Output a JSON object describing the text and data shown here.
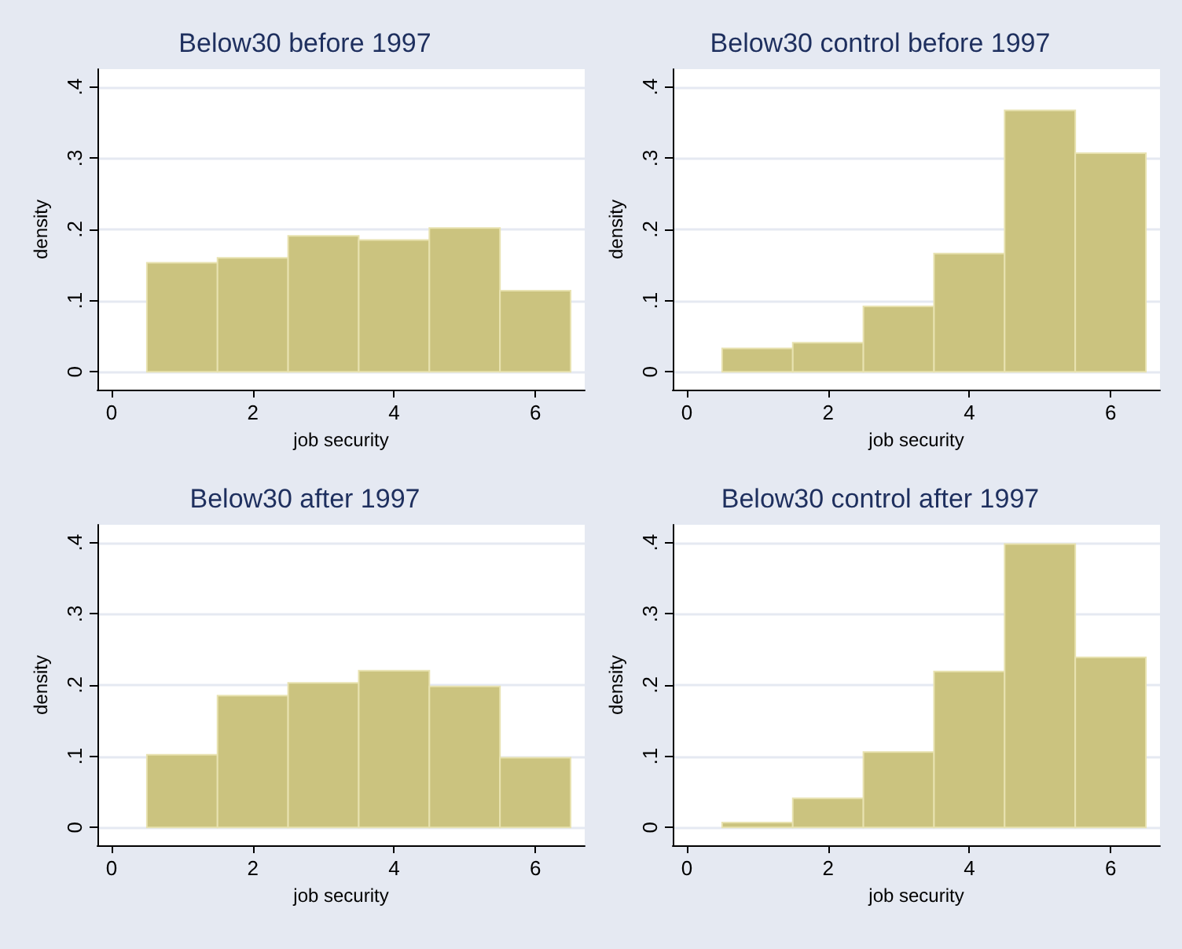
{
  "chart_data": [
    {
      "type": "histogram",
      "title": "Below30 before 1997",
      "xlabel": "job security",
      "ylabel": "density",
      "bins": [
        0.5,
        1.5,
        2.5,
        3.5,
        4.5,
        5.5,
        6.5
      ],
      "values": [
        0.153,
        0.16,
        0.191,
        0.185,
        0.202,
        0.114
      ],
      "color": "#cbc37f",
      "xlim": [
        -0.2,
        6.7
      ],
      "xticks": [
        0,
        2,
        4,
        6
      ],
      "ylim": [
        -0.025,
        0.425
      ],
      "yticks": [
        {
          "value": 0,
          "label": "0"
        },
        {
          "value": 0.1,
          "label": ".1"
        },
        {
          "value": 0.2,
          "label": ".2"
        },
        {
          "value": 0.3,
          "label": ".3"
        },
        {
          "value": 0.4,
          "label": ".4"
        }
      ],
      "grid": "y"
    },
    {
      "type": "histogram",
      "title": "Below30 control before 1997",
      "xlabel": "job security",
      "ylabel": "density",
      "bins": [
        0.5,
        1.5,
        2.5,
        3.5,
        4.5,
        5.5,
        6.5
      ],
      "values": [
        0.033,
        0.041,
        0.092,
        0.166,
        0.367,
        0.307
      ],
      "color": "#cbc37f",
      "xlim": [
        -0.2,
        6.7
      ],
      "xticks": [
        0,
        2,
        4,
        6
      ],
      "ylim": [
        -0.025,
        0.425
      ],
      "yticks": [
        {
          "value": 0,
          "label": "0"
        },
        {
          "value": 0.1,
          "label": ".1"
        },
        {
          "value": 0.2,
          "label": ".2"
        },
        {
          "value": 0.3,
          "label": ".3"
        },
        {
          "value": 0.4,
          "label": ".4"
        }
      ],
      "grid": "y"
    },
    {
      "type": "histogram",
      "title": "Below30 after 1997",
      "xlabel": "job security",
      "ylabel": "density",
      "bins": [
        0.5,
        1.5,
        2.5,
        3.5,
        4.5,
        5.5,
        6.5
      ],
      "values": [
        0.102,
        0.185,
        0.203,
        0.22,
        0.198,
        0.098
      ],
      "color": "#cbc37f",
      "xlim": [
        -0.2,
        6.7
      ],
      "xticks": [
        0,
        2,
        4,
        6
      ],
      "ylim": [
        -0.025,
        0.425
      ],
      "yticks": [
        {
          "value": 0,
          "label": "0"
        },
        {
          "value": 0.1,
          "label": ".1"
        },
        {
          "value": 0.2,
          "label": ".2"
        },
        {
          "value": 0.3,
          "label": ".3"
        },
        {
          "value": 0.4,
          "label": ".4"
        }
      ],
      "grid": "y"
    },
    {
      "type": "histogram",
      "title": "Below30 control after 1997",
      "xlabel": "job security",
      "ylabel": "density",
      "bins": [
        0.5,
        1.5,
        2.5,
        3.5,
        4.5,
        5.5,
        6.5
      ],
      "values": [
        0.007,
        0.041,
        0.106,
        0.219,
        0.398,
        0.239
      ],
      "color": "#cbc37f",
      "xlim": [
        -0.2,
        6.7
      ],
      "xticks": [
        0,
        2,
        4,
        6
      ],
      "ylim": [
        -0.025,
        0.425
      ],
      "yticks": [
        {
          "value": 0,
          "label": "0"
        },
        {
          "value": 0.1,
          "label": ".1"
        },
        {
          "value": 0.2,
          "label": ".2"
        },
        {
          "value": 0.3,
          "label": ".3"
        },
        {
          "value": 0.4,
          "label": ".4"
        }
      ],
      "grid": "y"
    }
  ]
}
